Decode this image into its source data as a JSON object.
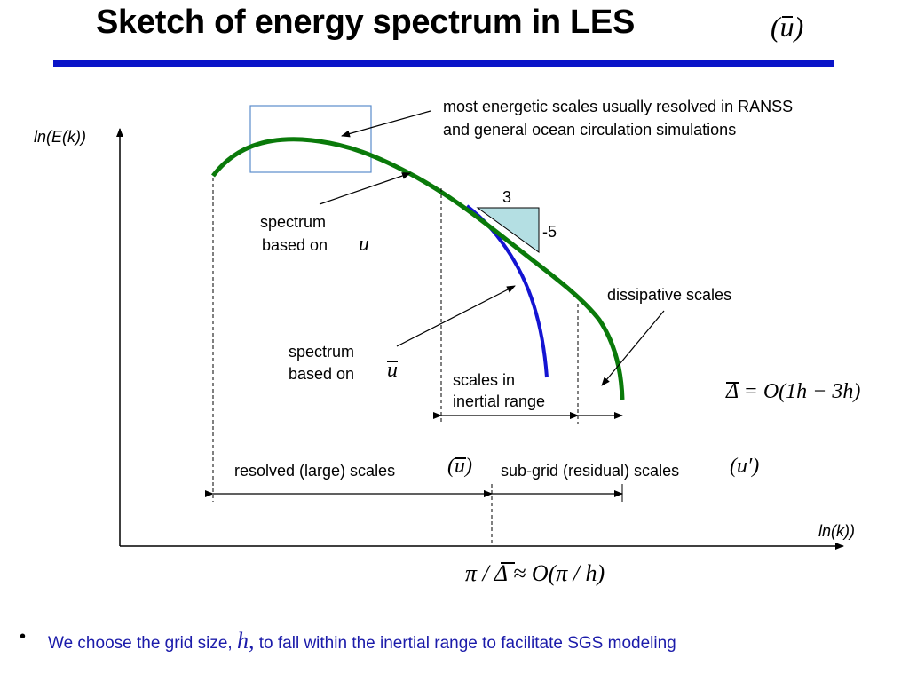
{
  "title": "Sketch of energy spectrum in LES",
  "title_math": "(u)",
  "axes": {
    "ylabel": "ln(E(k))",
    "xlabel": "ln(k))"
  },
  "slope": {
    "top": "3",
    "side": "-5"
  },
  "annotations": {
    "energetic_line1": "most energetic scales usually resolved in RANSS",
    "energetic_line2": "and general ocean circulation simulations",
    "spectrum_u_line1": "spectrum",
    "spectrum_u_line2": "based on",
    "spectrum_u_symbol": "u",
    "spectrum_ubar_line1": "spectrum",
    "spectrum_ubar_line2": "based on",
    "spectrum_ubar_symbol": "u",
    "dissipative": "dissipative scales",
    "inertial_line1": "scales in",
    "inertial_line2": "inertial range",
    "delta_formula": "Δ = O(1h − 3h)",
    "resolved": "resolved (large) scales",
    "resolved_symbol": "(u)",
    "subgrid": "sub-grid (residual) scales",
    "subgrid_symbol": "(u′)",
    "bottom_formula": "π / Δ ≈ O(π / h)"
  },
  "bullet": {
    "marker": "•",
    "text_before": "We choose the grid size,",
    "h": "h,",
    "text_after": "to fall within the inertial range to facilitate SGS modeling"
  },
  "colors": {
    "rule": "#0a14c8",
    "green_curve": "#0a7a0a",
    "blue_curve": "#1414d2",
    "triangle_fill": "#b4dfe3",
    "bullet_text": "#1b1baa"
  }
}
